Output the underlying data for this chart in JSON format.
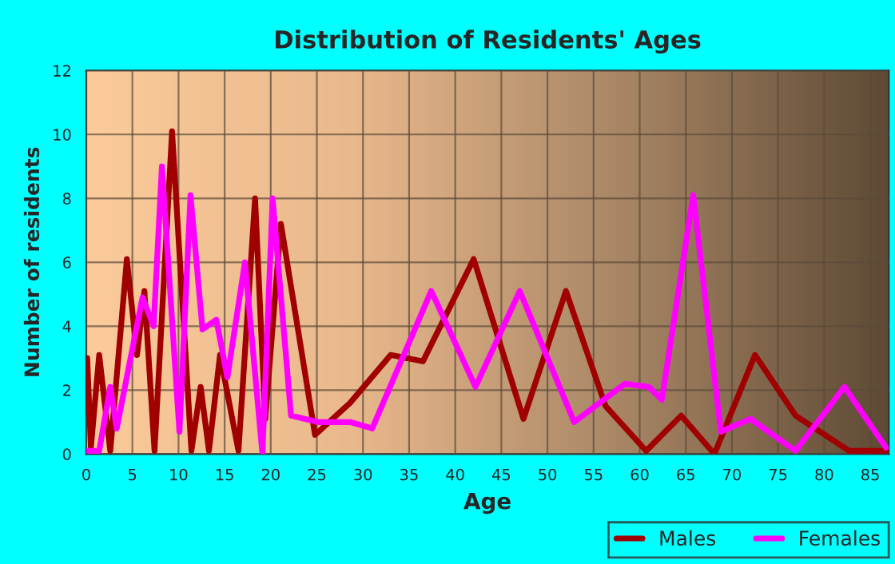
{
  "chart_data": {
    "type": "line",
    "title": "Distribution of Residents' Ages",
    "xlabel": "Age",
    "ylabel": "Number of residents",
    "xlim": [
      0,
      87
    ],
    "ylim": [
      0,
      12
    ],
    "xticks": [
      0,
      5,
      10,
      15,
      20,
      25,
      30,
      35,
      40,
      45,
      50,
      55,
      60,
      65,
      70,
      75,
      80,
      85
    ],
    "yticks": [
      0,
      2,
      4,
      6,
      8,
      10,
      12
    ],
    "grid": true,
    "legend": "bottom right",
    "line_style": "solid",
    "marker": "none",
    "series": [
      {
        "name": "Males",
        "color": "#a00000",
        "x": [
          0.1,
          0.5,
          1.4,
          2.6,
          4.4,
          5.5,
          6.3,
          7.4,
          9.3,
          11.4,
          12.4,
          13.3,
          14.5,
          16.5,
          18.3,
          19.4,
          21.1,
          24.8,
          28.6,
          33.0,
          36.5,
          42.0,
          47.4,
          52.0,
          56.3,
          60.7,
          64.5,
          68.1,
          72.5,
          76.9,
          82.7,
          86.7
        ],
        "values": [
          3.0,
          0.2,
          3.1,
          0.1,
          6.1,
          3.1,
          5.1,
          0.1,
          10.1,
          0.1,
          2.1,
          0.1,
          3.1,
          0.1,
          8.0,
          1.1,
          7.2,
          0.6,
          1.6,
          3.1,
          2.9,
          6.1,
          1.1,
          5.1,
          1.5,
          0.1,
          1.2,
          0.0,
          3.1,
          1.2,
          0.1,
          0.1
        ]
      },
      {
        "name": "Females",
        "color": "#ff00ff",
        "x": [
          0.1,
          1.4,
          2.6,
          3.3,
          6.1,
          7.3,
          8.2,
          10.1,
          11.3,
          12.6,
          14.1,
          15.3,
          17.2,
          19.1,
          20.2,
          22.2,
          25.1,
          28.6,
          31.0,
          37.4,
          42.2,
          47.0,
          52.9,
          58.4,
          61.0,
          62.4,
          65.8,
          68.8,
          72.0,
          76.9,
          82.2,
          86.7
        ],
        "values": [
          0.1,
          0.1,
          2.1,
          0.8,
          4.9,
          4.0,
          9.0,
          0.7,
          8.1,
          3.9,
          4.2,
          2.4,
          6.0,
          0.0,
          8.0,
          1.2,
          1.0,
          1.0,
          0.8,
          5.1,
          2.1,
          5.1,
          1.0,
          2.2,
          2.1,
          1.7,
          8.1,
          0.7,
          1.1,
          0.1,
          2.1,
          0.2
        ]
      }
    ]
  }
}
